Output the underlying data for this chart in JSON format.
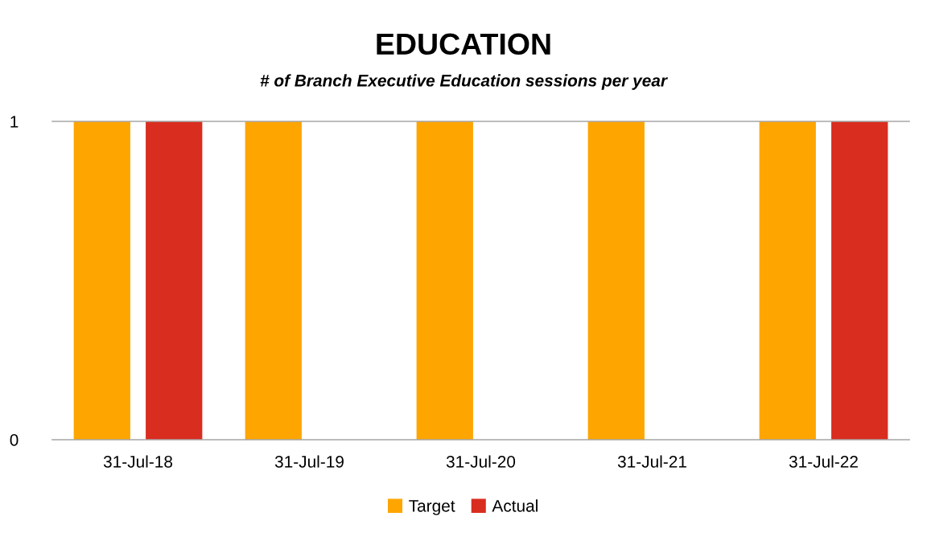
{
  "chart_data": {
    "type": "bar",
    "title": "EDUCATION",
    "subtitle": "# of Branch Executive Education sessions per year",
    "categories": [
      "31-Jul-18",
      "31-Jul-19",
      "31-Jul-20",
      "31-Jul-21",
      "31-Jul-22"
    ],
    "series": [
      {
        "name": "Target",
        "color": "#ffa500",
        "values": [
          1,
          1,
          1,
          1,
          1
        ]
      },
      {
        "name": "Actual",
        "color": "#d92d20",
        "values": [
          1,
          0,
          0,
          0,
          1
        ]
      }
    ],
    "ylim": [
      0,
      1
    ],
    "yticks": [
      0,
      1
    ],
    "legend": "bottom"
  }
}
